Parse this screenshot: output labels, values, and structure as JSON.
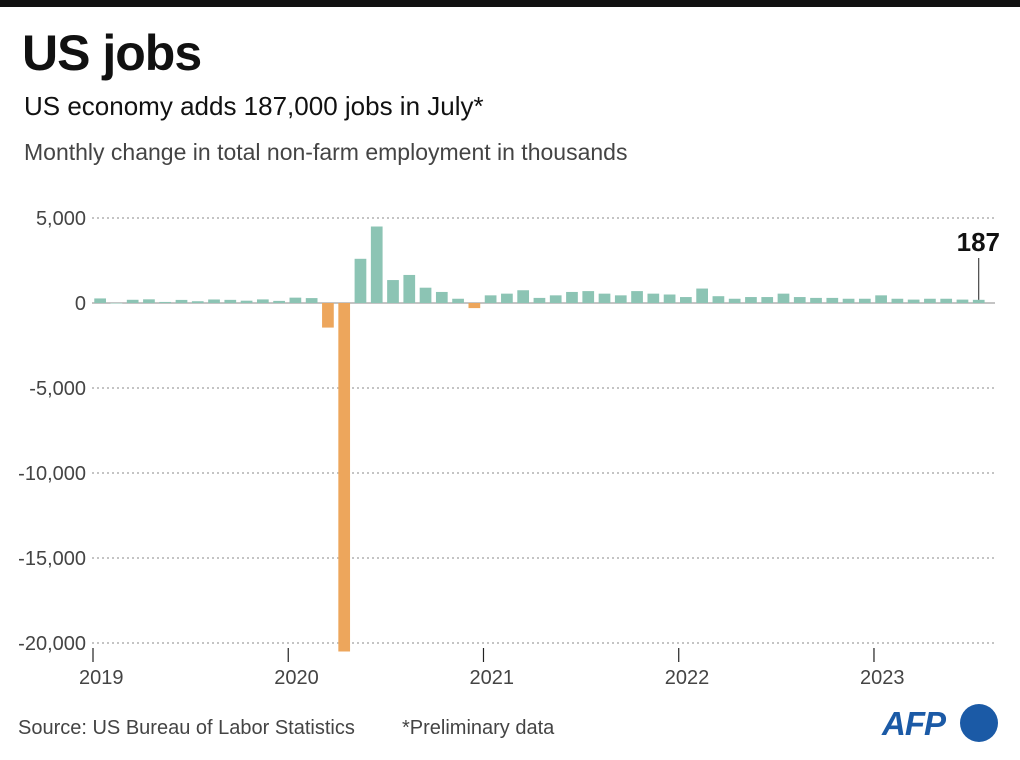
{
  "header": {
    "title": "US jobs",
    "subtitle": "US economy adds 187,000 jobs in July*",
    "description": "Monthly change in total non-farm employment in thousands"
  },
  "footer": {
    "source": "Source: US Bureau of Labor Statistics",
    "note": "*Preliminary data",
    "logo": "AFP"
  },
  "colors": {
    "positive": "#8cc4b4",
    "negative": "#eda65c",
    "grid": "#8a8a8a",
    "text": "#111111",
    "logo": "#1b5aa6"
  },
  "chart_data": {
    "type": "bar",
    "title": "US jobs",
    "subtitle": "US economy adds 187,000 jobs in July*",
    "ylabel": "Monthly change in total non-farm employment in thousands",
    "xlabel": "",
    "ylim": [
      -20500,
      5000
    ],
    "y_ticks": [
      5000,
      0,
      -5000,
      -10000,
      -15000,
      -20000
    ],
    "y_tick_labels": [
      "5,000",
      "0",
      "-5,000",
      "-10,000",
      "-15,000",
      "-20,000"
    ],
    "x_ticks": [
      "2019",
      "2020",
      "2021",
      "2022",
      "2023"
    ],
    "grid": true,
    "annotation": {
      "label": "187",
      "value": 187
    },
    "categories": [
      "2019-01",
      "2019-02",
      "2019-03",
      "2019-04",
      "2019-05",
      "2019-06",
      "2019-07",
      "2019-08",
      "2019-09",
      "2019-10",
      "2019-11",
      "2019-12",
      "2020-01",
      "2020-02",
      "2020-03",
      "2020-04",
      "2020-05",
      "2020-06",
      "2020-07",
      "2020-08",
      "2020-09",
      "2020-10",
      "2020-11",
      "2020-12",
      "2021-01",
      "2021-02",
      "2021-03",
      "2021-04",
      "2021-05",
      "2021-06",
      "2021-07",
      "2021-08",
      "2021-09",
      "2021-10",
      "2021-11",
      "2021-12",
      "2022-01",
      "2022-02",
      "2022-03",
      "2022-04",
      "2022-05",
      "2022-06",
      "2022-07",
      "2022-08",
      "2022-09",
      "2022-10",
      "2022-11",
      "2022-12",
      "2023-01",
      "2023-02",
      "2023-03",
      "2023-04",
      "2023-05",
      "2023-06",
      "2023-07"
    ],
    "values": [
      269,
      1,
      189,
      216,
      62,
      182,
      104,
      207,
      185,
      136,
      212,
      124,
      315,
      289,
      -1446,
      -20500,
      2600,
      4500,
      1350,
      1650,
      900,
      650,
      250,
      -300,
      450,
      550,
      750,
      300,
      450,
      650,
      700,
      550,
      450,
      700,
      550,
      500,
      350,
      850,
      400,
      250,
      350,
      350,
      550,
      350,
      300,
      300,
      250,
      250,
      450,
      250,
      200,
      250,
      250,
      200,
      187
    ]
  }
}
